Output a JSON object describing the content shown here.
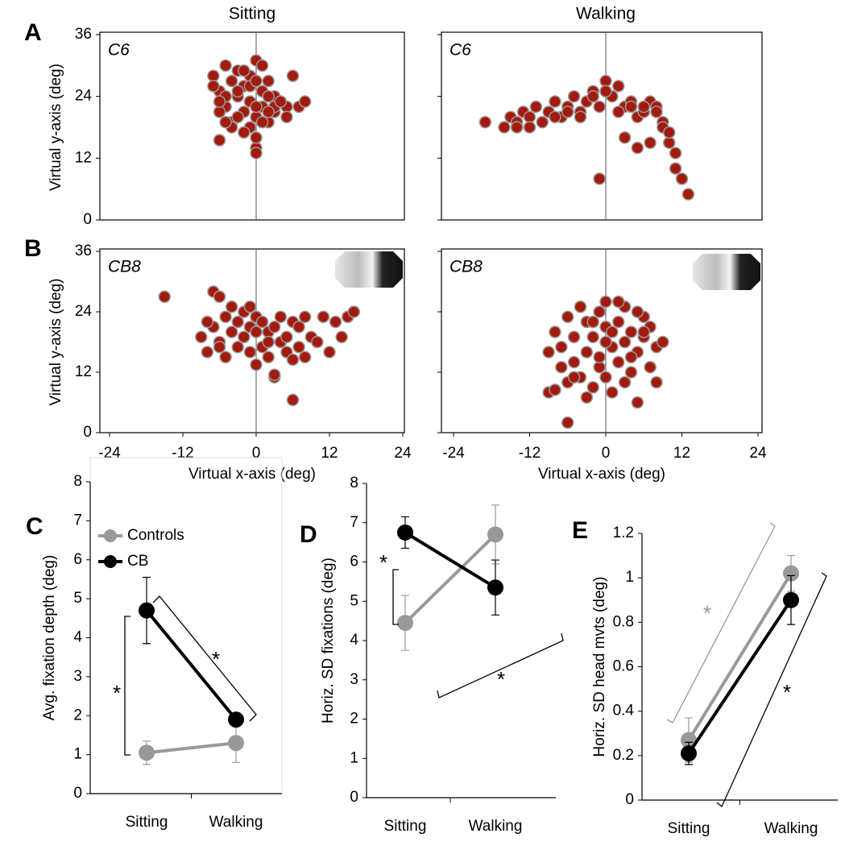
{
  "chart_data": [
    {
      "type": "scatter",
      "panel": "A",
      "column_title": "Sitting",
      "label": "C6",
      "ylabel": "Virtual y-axis (deg)",
      "xlim": [
        -24,
        24
      ],
      "ylim": [
        0,
        36
      ],
      "yticks": [
        0,
        12,
        24,
        36
      ],
      "reference_line_x": 0,
      "series": [
        {
          "color": "#a31a0e",
          "edge_color": "#9a9a9a",
          "x": [
            -7,
            -6,
            -6,
            -5,
            -5,
            -4,
            -4,
            -3,
            -3,
            -2,
            -2,
            -1,
            -1,
            0,
            0,
            0,
            1,
            1,
            2,
            2,
            3,
            3,
            4,
            5,
            6,
            7,
            8,
            -7,
            -6,
            -5,
            -3,
            -2,
            -1,
            0,
            1,
            2,
            -4,
            -2,
            0,
            1,
            3,
            5,
            -6,
            -1,
            0,
            -3,
            2,
            4,
            -5,
            0
          ],
          "y": [
            28,
            25,
            15.5,
            30,
            22,
            27,
            19,
            24,
            29,
            21,
            26,
            23,
            18,
            31,
            20,
            14,
            25,
            22,
            27,
            19,
            21,
            24,
            23,
            22,
            28,
            22,
            23,
            26,
            21,
            24,
            20,
            17,
            28,
            16,
            30,
            24,
            18,
            29,
            13,
            19,
            22,
            20,
            23,
            26,
            22,
            25,
            21,
            23,
            19,
            27
          ]
        }
      ]
    },
    {
      "type": "scatter",
      "column_title": "Walking",
      "label": "C6",
      "xlim": [
        -24,
        24
      ],
      "ylim": [
        0,
        36
      ],
      "reference_line_x": 0,
      "series": [
        {
          "color": "#a31a0e",
          "edge_color": "#9a9a9a",
          "x": [
            -19,
            -16,
            -15,
            -14,
            -13,
            -12,
            -11,
            -10,
            -9,
            -8,
            -7,
            -6,
            -5,
            -4,
            -3,
            -2,
            -1,
            0,
            1,
            2,
            3,
            4,
            5,
            6,
            7,
            8,
            9,
            10,
            11,
            12,
            13,
            -14,
            -12,
            -10,
            -8,
            -6,
            -4,
            -2,
            0,
            2,
            4,
            6,
            8,
            9,
            10,
            11,
            -1,
            3,
            5,
            7
          ],
          "y": [
            19,
            18,
            20,
            19,
            21,
            20,
            22,
            19,
            21,
            23,
            20,
            22,
            24,
            21,
            23,
            25,
            22,
            27,
            24,
            26,
            22,
            23,
            20,
            21,
            23,
            22,
            19,
            15,
            10,
            8,
            5,
            18,
            18,
            19,
            20,
            21,
            20,
            24,
            25,
            21,
            22,
            22,
            21,
            18,
            17,
            13,
            8,
            16,
            14,
            15
          ]
        }
      ]
    },
    {
      "type": "scatter",
      "panel": "B",
      "label": "CB8",
      "ylabel": "Virtual y-axis (deg)",
      "xlabel": "Virtual x-axis (deg)",
      "xlim": [
        -24,
        24
      ],
      "ylim": [
        0,
        36
      ],
      "xticks": [
        -24,
        -12,
        0,
        12,
        24
      ],
      "yticks": [
        0,
        12,
        24,
        36
      ],
      "reference_line_x": 0,
      "series": [
        {
          "color": "#a31a0e",
          "edge_color": "#9a9a9a",
          "x": [
            -15,
            -9,
            -8,
            -7,
            -7,
            -6,
            -6,
            -5,
            -5,
            -4,
            -4,
            -3,
            -3,
            -2,
            -2,
            -1,
            -1,
            0,
            0,
            1,
            1,
            2,
            2,
            3,
            3,
            4,
            4,
            5,
            5,
            6,
            6,
            7,
            7,
            8,
            8,
            9,
            10,
            11,
            12,
            13,
            14,
            15,
            16,
            -1,
            2,
            3,
            6,
            -8,
            -6,
            0
          ],
          "y": [
            27,
            19,
            16,
            28,
            21,
            27,
            18,
            23,
            15,
            20,
            25,
            17,
            22,
            19,
            24,
            16,
            21,
            13.5,
            23,
            17,
            22,
            20,
            15,
            11,
            21,
            18,
            23,
            19,
            16,
            6.5,
            22,
            17,
            21,
            15,
            23,
            19,
            18,
            23,
            16,
            22,
            19,
            23,
            24,
            25,
            18,
            11.5,
            14.5,
            22,
            17,
            20
          ]
        }
      ]
    },
    {
      "type": "scatter",
      "label": "CB8",
      "xlabel": "Virtual x-axis (deg)",
      "xlim": [
        -24,
        24
      ],
      "ylim": [
        0,
        36
      ],
      "xticks": [
        -24,
        -12,
        0,
        12,
        24
      ],
      "reference_line_x": 0,
      "series": [
        {
          "color": "#a31a0e",
          "edge_color": "#9a9a9a",
          "x": [
            -6,
            -9,
            -9,
            -8,
            -8,
            -7,
            -7,
            -6,
            -6,
            -5,
            -5,
            -4,
            -4,
            -3,
            -3,
            -2,
            -2,
            -1,
            -1,
            0,
            0,
            0,
            1,
            1,
            2,
            2,
            3,
            3,
            4,
            4,
            5,
            5,
            6,
            6,
            7,
            7,
            8,
            8,
            9,
            -3,
            -1,
            1,
            3,
            5,
            -5,
            0,
            2,
            4,
            -2,
            6
          ],
          "y": [
            2,
            8,
            16,
            8.5,
            20,
            13,
            17,
            10,
            23,
            19,
            14,
            25,
            11,
            16,
            22,
            9,
            19,
            24,
            13,
            26,
            21,
            11,
            17,
            8,
            22,
            14,
            18,
            25,
            12,
            20,
            6,
            16,
            23,
            19,
            13,
            21,
            17,
            10,
            18,
            7,
            15,
            20,
            10,
            24,
            11,
            18,
            26,
            15,
            22,
            20
          ]
        }
      ]
    },
    {
      "type": "line",
      "panel": "C",
      "ylabel": "Avg. fixation depth (deg)",
      "categories": [
        "Sitting",
        "Walking"
      ],
      "ylim": [
        0,
        8
      ],
      "yticks": [
        0,
        1,
        2,
        3,
        4,
        5,
        6,
        7,
        8
      ],
      "legend": "top-left",
      "series": [
        {
          "name": "Controls",
          "color": "#999999",
          "values": [
            1.05,
            1.3
          ],
          "errors": [
            0.3,
            0.5
          ]
        },
        {
          "name": "CB",
          "color": "#000000",
          "values": [
            4.7,
            1.9
          ],
          "errors": [
            0.85,
            0.1
          ]
        }
      ],
      "annotations": [
        {
          "text": "*",
          "color": "#000000"
        },
        {
          "text": "*",
          "color": "#000000"
        }
      ]
    },
    {
      "type": "line",
      "panel": "D",
      "ylabel": "Horiz. SD fixations (deg)",
      "categories": [
        "Sitting",
        "Walking"
      ],
      "ylim": [
        0,
        8
      ],
      "yticks": [
        0,
        1,
        2,
        3,
        4,
        5,
        6,
        7,
        8
      ],
      "series": [
        {
          "name": "Controls",
          "color": "#999999",
          "values": [
            4.45,
            6.7
          ],
          "errors": [
            0.7,
            0.75
          ]
        },
        {
          "name": "CB",
          "color": "#000000",
          "values": [
            6.75,
            5.35
          ],
          "errors": [
            0.4,
            0.7
          ]
        }
      ],
      "annotations": [
        {
          "text": "*",
          "color": "#000000"
        },
        {
          "text": "*",
          "color": "#000000"
        }
      ]
    },
    {
      "type": "line",
      "panel": "E",
      "ylabel": "Horiz. SD head mvts (deg)",
      "categories": [
        "Sitting",
        "Walking"
      ],
      "ylim": [
        0,
        1.2
      ],
      "yticks": [
        0,
        0.2,
        0.4,
        0.6,
        0.8,
        1,
        1.2
      ],
      "series": [
        {
          "name": "Controls",
          "color": "#999999",
          "values": [
            0.27,
            1.02
          ],
          "errors": [
            0.1,
            0.08
          ]
        },
        {
          "name": "CB",
          "color": "#000000",
          "values": [
            0.21,
            0.9
          ],
          "errors": [
            0.05,
            0.11
          ]
        }
      ],
      "annotations": [
        {
          "text": "*",
          "color": "#999999"
        },
        {
          "text": "*",
          "color": "#000000"
        }
      ]
    }
  ]
}
